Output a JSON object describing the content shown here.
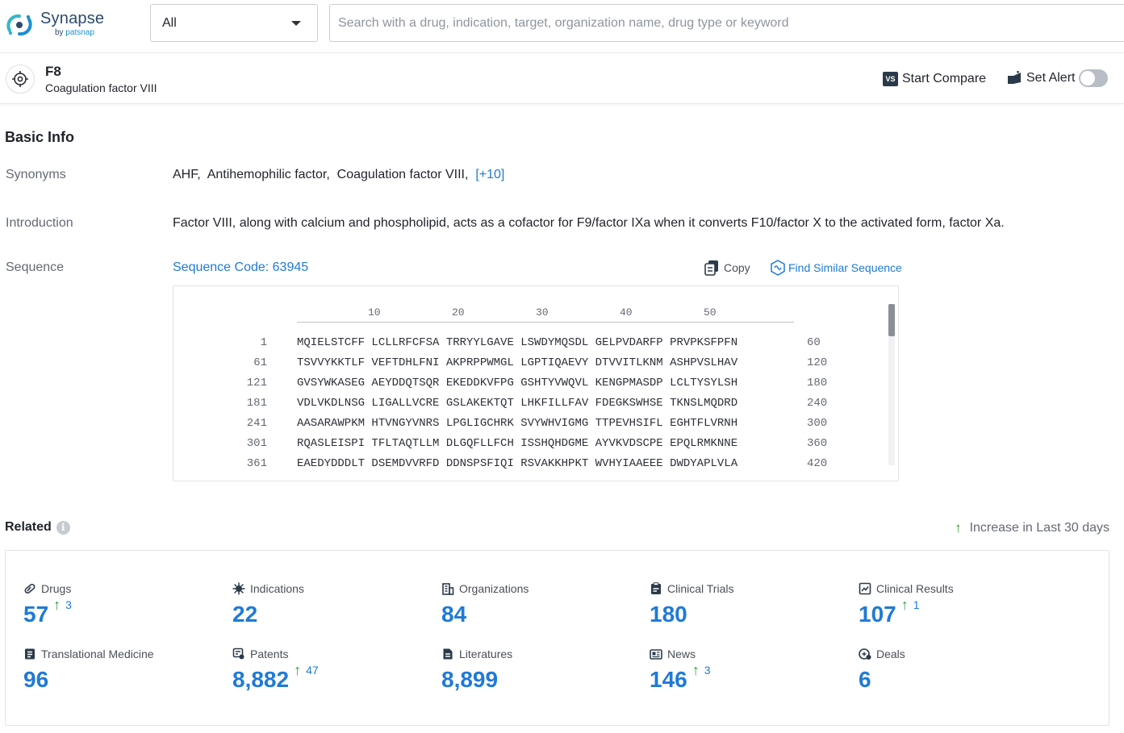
{
  "app": {
    "logo_name": "Synapse",
    "logo_by": "by",
    "logo_brand": "patsnap"
  },
  "search": {
    "scope_value": "All",
    "placeholder": "Search with a drug, indication, target, organization name, drug type or keyword"
  },
  "entity": {
    "name": "F8",
    "full_name": "Coagulation factor VIII",
    "compare_badge": "VS",
    "compare_label": "Start Compare",
    "alert_label": "Set Alert",
    "alert_on": false
  },
  "basic_info": {
    "title": "Basic Info",
    "synonyms_label": "Synonyms",
    "synonyms": [
      "AHF,",
      "Antihemophilic factor,",
      "Coagulation factor VIII,"
    ],
    "synonyms_more": "[+10]",
    "introduction_label": "Introduction",
    "introduction": "Factor VIII, along with calcium and phospholipid, acts as a cofactor for F9/factor IXa when it converts F10/factor X to the activated form, factor Xa.",
    "sequence_label": "Sequence",
    "sequence_code": "Sequence Code: 63945",
    "copy_label": "Copy",
    "find_similar_label": "Find Similar Sequence",
    "ruler_ticks": [
      "10",
      "20",
      "30",
      "40",
      "50"
    ],
    "sequence_lines": [
      {
        "start": "1",
        "blocks": "MQIELSTCFF LCLLRFCFSA TRRYYLGAVE LSWDYMQSDL GELPVDARFP PRVPKSFPFN",
        "end": "60"
      },
      {
        "start": "61",
        "blocks": "TSVVYKKTLF VEFTDHLFNI AKPRPPWMGL LGPTIQAEVY DTVVITLKNM ASHPVSLHAV",
        "end": "120"
      },
      {
        "start": "121",
        "blocks": "GVSYWKASEG AEYDDQTSQR EKEDDKVFPG GSHTYVWQVL KENGPMASDP LCLTYSYLSH",
        "end": "180"
      },
      {
        "start": "181",
        "blocks": "VDLVKDLNSG LIGALLVCRE GSLAKEKTQT LHKFILLFAV FDEGKSWHSE TKNSLMQDRD",
        "end": "240"
      },
      {
        "start": "241",
        "blocks": "AASARAWPKM HTVNGYVNRS LPGLIGCHRK SVYWHVIGMG TTPEVHSIFL EGHTFLVRNH",
        "end": "300"
      },
      {
        "start": "301",
        "blocks": "RQASLEISPI TFLTAQTLLM DLGQFLLFCH ISSHQHDGME AYVKVDSCPE EPQLRMKNNE",
        "end": "360"
      },
      {
        "start": "361",
        "blocks": "EAEDYDDDLT DSEMDVVRFD DDNSPSFIQI RSVAKKHPKT WVHYIAAEEE DWDYAPLVLA",
        "end": "420"
      }
    ]
  },
  "related": {
    "title": "Related",
    "legend": "Increase in Last 30 days",
    "stats": [
      {
        "label": "Drugs",
        "icon": "pill-icon",
        "value": "57",
        "increase": "3"
      },
      {
        "label": "Indications",
        "icon": "virus-icon",
        "value": "22",
        "increase": ""
      },
      {
        "label": "Organizations",
        "icon": "building-icon",
        "value": "84",
        "increase": ""
      },
      {
        "label": "Clinical Trials",
        "icon": "clipboard-icon",
        "value": "180",
        "increase": ""
      },
      {
        "label": "Clinical Results",
        "icon": "chart-doc-icon",
        "value": "107",
        "increase": "1"
      },
      {
        "label": "Translational Medicine",
        "icon": "notebook-icon",
        "value": "96",
        "increase": ""
      },
      {
        "label": "Patents",
        "icon": "patent-icon",
        "value": "8,882",
        "increase": "47"
      },
      {
        "label": "Literatures",
        "icon": "document-icon",
        "value": "8,899",
        "increase": ""
      },
      {
        "label": "News",
        "icon": "newspaper-icon",
        "value": "146",
        "increase": "3"
      },
      {
        "label": "Deals",
        "icon": "deal-icon",
        "value": "6",
        "increase": ""
      }
    ]
  },
  "colors": {
    "link": "#1f7ad6",
    "increase_arrow": "#2fa03a",
    "brand_dark": "#2b4a6f"
  }
}
